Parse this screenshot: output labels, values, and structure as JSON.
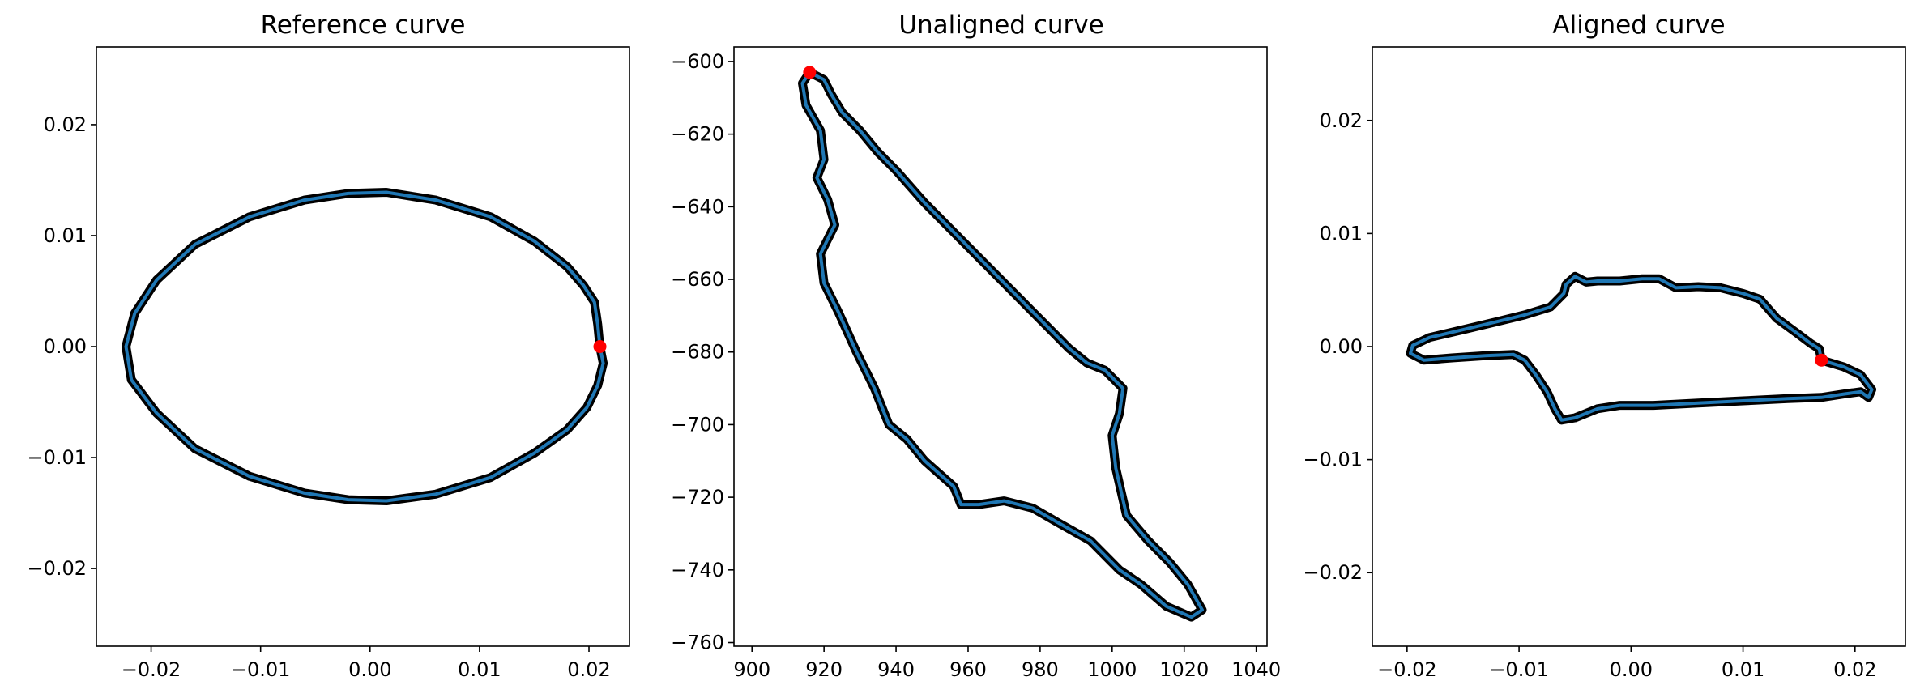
{
  "colors": {
    "line": "#1f77b4",
    "marker": "#ff0000",
    "edge": "#000000"
  },
  "chart_data": [
    {
      "type": "line",
      "title": "Reference curve",
      "xlabel": "",
      "ylabel": "",
      "xlim": [
        -0.025,
        0.0237
      ],
      "ylim": [
        -0.027,
        0.027
      ],
      "xticks": [
        -0.02,
        -0.01,
        0.0,
        0.01,
        0.02
      ],
      "xtick_labels": [
        "−0.02",
        "−0.01",
        "0.00",
        "0.01",
        "0.02"
      ],
      "yticks": [
        -0.02,
        -0.01,
        0.0,
        0.01,
        0.02
      ],
      "ytick_labels": [
        "−0.02",
        "−0.01",
        "0.00",
        "0.01",
        "0.02"
      ],
      "grid": false,
      "series": [
        {
          "points": [
            [
              0.021,
              0.0
            ],
            [
              0.0208,
              0.002
            ],
            [
              0.0205,
              0.004
            ],
            [
              0.0195,
              0.0055
            ],
            [
              0.018,
              0.0072
            ],
            [
              0.015,
              0.0095
            ],
            [
              0.011,
              0.0117
            ],
            [
              0.006,
              0.0132
            ],
            [
              0.0015,
              0.0139
            ],
            [
              -0.002,
              0.0138
            ],
            [
              -0.006,
              0.0132
            ],
            [
              -0.011,
              0.0117
            ],
            [
              -0.016,
              0.0092
            ],
            [
              -0.0195,
              0.006
            ],
            [
              -0.0215,
              0.003
            ],
            [
              -0.0223,
              0.0
            ],
            [
              -0.0218,
              -0.003
            ],
            [
              -0.0195,
              -0.006
            ],
            [
              -0.016,
              -0.0092
            ],
            [
              -0.011,
              -0.0117
            ],
            [
              -0.006,
              -0.0132
            ],
            [
              -0.002,
              -0.0138
            ],
            [
              0.0015,
              -0.0139
            ],
            [
              0.006,
              -0.0133
            ],
            [
              0.011,
              -0.0118
            ],
            [
              0.015,
              -0.0096
            ],
            [
              0.018,
              -0.0075
            ],
            [
              0.0198,
              -0.0055
            ],
            [
              0.0208,
              -0.0035
            ],
            [
              0.0213,
              -0.0015
            ],
            [
              0.021,
              0.0
            ]
          ]
        }
      ],
      "marker": {
        "x": 0.021,
        "y": 0.0
      }
    },
    {
      "type": "line",
      "title": "Unaligned curve",
      "xlabel": "",
      "ylabel": "",
      "xlim": [
        895,
        1043
      ],
      "ylim": [
        -761,
        -596
      ],
      "xticks": [
        900,
        920,
        940,
        960,
        980,
        1000,
        1020,
        1040
      ],
      "xtick_labels": [
        "900",
        "920",
        "940",
        "960",
        "980",
        "1000",
        "1020",
        "1040"
      ],
      "yticks": [
        -600,
        -620,
        -640,
        -660,
        -680,
        -700,
        -720,
        -740,
        -760
      ],
      "ytick_labels": [
        "−600",
        "−620",
        "−640",
        "−660",
        "−680",
        "−700",
        "−720",
        "−740",
        "−760"
      ],
      "grid": false,
      "series": [
        {
          "points": [
            [
              916,
              -603
            ],
            [
              920,
              -605
            ],
            [
              922,
              -609
            ],
            [
              925,
              -614
            ],
            [
              930,
              -619
            ],
            [
              935,
              -625
            ],
            [
              940,
              -630
            ],
            [
              948,
              -639
            ],
            [
              955,
              -646
            ],
            [
              962,
              -653
            ],
            [
              968,
              -659
            ],
            [
              975,
              -666
            ],
            [
              982,
              -673
            ],
            [
              988,
              -679
            ],
            [
              993,
              -683
            ],
            [
              998,
              -685
            ],
            [
              1003,
              -690
            ],
            [
              1002,
              -697
            ],
            [
              1000,
              -703
            ],
            [
              1001,
              -712
            ],
            [
              1004,
              -725
            ],
            [
              1010,
              -732
            ],
            [
              1016,
              -738
            ],
            [
              1021,
              -744
            ],
            [
              1025,
              -751
            ],
            [
              1022,
              -753
            ],
            [
              1015,
              -750
            ],
            [
              1008,
              -744
            ],
            [
              1002,
              -740
            ],
            [
              994,
              -732
            ],
            [
              985,
              -727
            ],
            [
              978,
              -723
            ],
            [
              970,
              -721
            ],
            [
              963,
              -722
            ],
            [
              958,
              -722
            ],
            [
              956,
              -717
            ],
            [
              948,
              -710
            ],
            [
              943,
              -704
            ],
            [
              938,
              -700
            ],
            [
              934,
              -690
            ],
            [
              929,
              -680
            ],
            [
              924,
              -669
            ],
            [
              920,
              -661
            ],
            [
              919,
              -653
            ],
            [
              923,
              -645
            ],
            [
              921,
              -638
            ],
            [
              918,
              -632
            ],
            [
              920,
              -627
            ],
            [
              919,
              -619
            ],
            [
              915,
              -612
            ],
            [
              914,
              -606
            ],
            [
              916,
              -603
            ]
          ]
        }
      ],
      "marker": {
        "x": 916,
        "y": -603
      }
    },
    {
      "type": "line",
      "title": "Aligned curve",
      "xlabel": "",
      "ylabel": "",
      "xlim": [
        -0.0231,
        0.0245
      ],
      "ylim": [
        -0.0265,
        0.0265
      ],
      "xticks": [
        -0.02,
        -0.01,
        0.0,
        0.01,
        0.02
      ],
      "xtick_labels": [
        "−0.02",
        "−0.01",
        "0.00",
        "0.01",
        "0.02"
      ],
      "yticks": [
        -0.02,
        -0.01,
        0.0,
        0.01,
        0.02
      ],
      "ytick_labels": [
        "−0.02",
        "−0.01",
        "0.00",
        "0.01",
        "0.02"
      ],
      "grid": false,
      "series": [
        {
          "points": [
            [
              0.017,
              -0.0012
            ],
            [
              0.0168,
              -0.0002
            ],
            [
              0.016,
              0.0003
            ],
            [
              0.0148,
              0.0012
            ],
            [
              0.013,
              0.0025
            ],
            [
              0.0115,
              0.0042
            ],
            [
              0.01,
              0.0047
            ],
            [
              0.008,
              0.0052
            ],
            [
              0.006,
              0.0053
            ],
            [
              0.004,
              0.0052
            ],
            [
              0.0025,
              0.006
            ],
            [
              0.001,
              0.006
            ],
            [
              -0.001,
              0.0058
            ],
            [
              -0.003,
              0.0058
            ],
            [
              -0.004,
              0.0057
            ],
            [
              -0.005,
              0.0062
            ],
            [
              -0.0058,
              0.0055
            ],
            [
              -0.006,
              0.0047
            ],
            [
              -0.0072,
              0.0035
            ],
            [
              -0.0095,
              0.0028
            ],
            [
              -0.012,
              0.0022
            ],
            [
              -0.015,
              0.0015
            ],
            [
              -0.018,
              0.0008
            ],
            [
              -0.0195,
              0.0001
            ],
            [
              -0.0197,
              -0.0006
            ],
            [
              -0.0185,
              -0.0012
            ],
            [
              -0.016,
              -0.001
            ],
            [
              -0.013,
              -0.0008
            ],
            [
              -0.0105,
              -0.0007
            ],
            [
              -0.0095,
              -0.0012
            ],
            [
              -0.0085,
              -0.0025
            ],
            [
              -0.0075,
              -0.004
            ],
            [
              -0.0068,
              -0.0055
            ],
            [
              -0.0062,
              -0.0065
            ],
            [
              -0.005,
              -0.0063
            ],
            [
              -0.003,
              -0.0055
            ],
            [
              -0.001,
              -0.0052
            ],
            [
              0.002,
              -0.0052
            ],
            [
              0.006,
              -0.005
            ],
            [
              0.01,
              -0.0048
            ],
            [
              0.014,
              -0.0046
            ],
            [
              0.017,
              -0.0045
            ],
            [
              0.019,
              -0.0042
            ],
            [
              0.0205,
              -0.004
            ],
            [
              0.0212,
              -0.0045
            ],
            [
              0.0215,
              -0.0038
            ],
            [
              0.0205,
              -0.0025
            ],
            [
              0.019,
              -0.0018
            ],
            [
              0.017,
              -0.0012
            ]
          ]
        }
      ],
      "marker": {
        "x": 0.017,
        "y": -0.0012
      }
    }
  ]
}
